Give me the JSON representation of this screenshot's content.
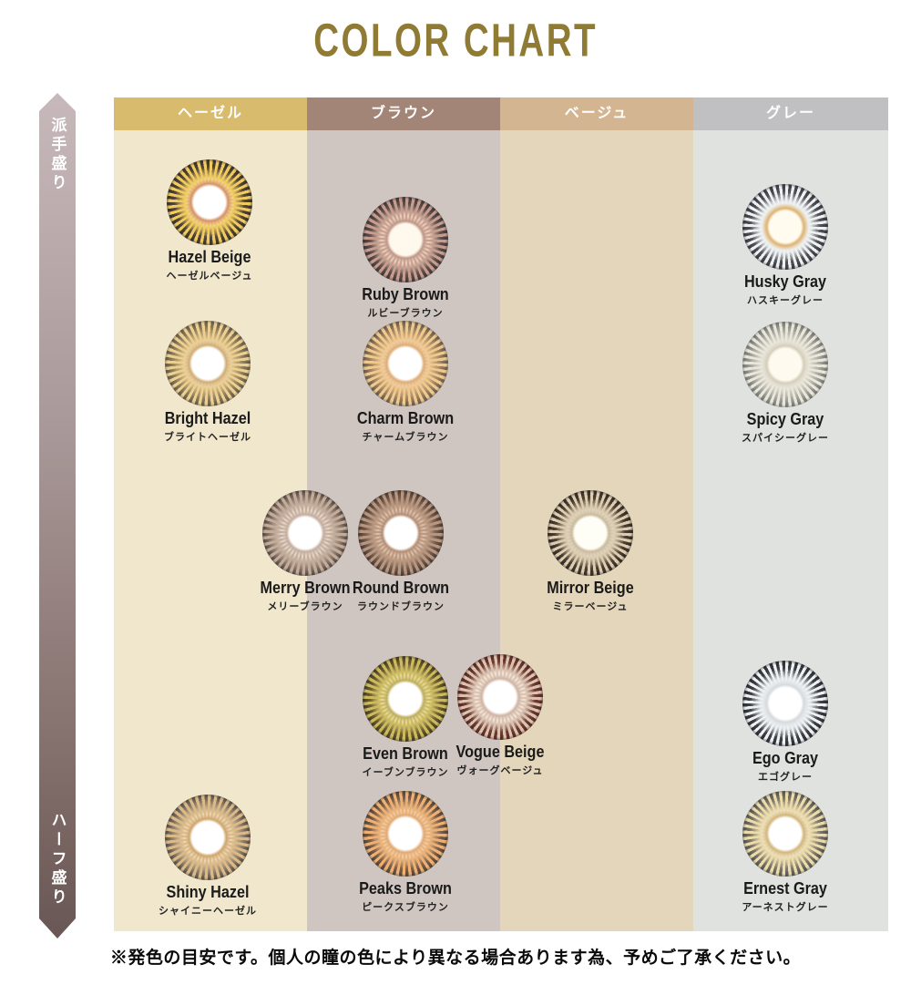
{
  "title": "COLOR CHART",
  "title_color": "#8f7b33",
  "sidebar": {
    "top_label": "派手盛り",
    "bottom_label": "ハーフ盛り",
    "gradient_top": "#c7b8ba",
    "gradient_bottom": "#695755"
  },
  "columns": [
    {
      "label": "ヘーゼル",
      "header_color": "#d9bb6d",
      "body_color": "#f0e7cd"
    },
    {
      "label": "ブラウン",
      "header_color": "#a28577",
      "body_color": "#cfc5c1"
    },
    {
      "label": "ベージュ",
      "header_color": "#d3b691",
      "body_color": "#e4d6ba"
    },
    {
      "label": "グレー",
      "header_color": "#c0c0c2",
      "body_color": "#dfe2de"
    }
  ],
  "lenses": [
    {
      "name": "Hazel Beige",
      "jp": "ヘーゼルベージュ",
      "column": "ヘーゼル",
      "colors": {
        "edge": "#332e28",
        "ring": "#554738",
        "mid": "#ecc765",
        "center": "#ffffff",
        "spike": "#f0cb60",
        "inner": "#d08050"
      }
    },
    {
      "name": "Ruby Brown",
      "jp": "ルビーブラウン",
      "column": "ブラウン",
      "colors": {
        "edge": "#3b3334",
        "ring": "#63514c",
        "mid": "#e3c2ad",
        "center": "#fff8ec",
        "spike": "#c79d90",
        "inner": "#b58878"
      }
    },
    {
      "name": "Husky Gray",
      "jp": "ハスキーグレー",
      "column": "グレー",
      "colors": {
        "edge": "#35363c",
        "ring": "#515257",
        "mid": "#e6e9ea",
        "center": "#fffbef",
        "spike": "#eef1f2",
        "inner": "#d8a75e"
      }
    },
    {
      "name": "Bright Hazel",
      "jp": "ブライトヘーゼル",
      "column": "ヘーゼル",
      "colors": {
        "edge": "#5b5342",
        "ring": "#93805c",
        "mid": "#dfc084",
        "center": "#ffffff",
        "spike": "#ecd092",
        "inner": "#c9a05e"
      }
    },
    {
      "name": "Charm Brown",
      "jp": "チャームブラウン",
      "column": "ブラウン",
      "colors": {
        "edge": "#5d544a",
        "ring": "#a0835f",
        "mid": "#e6bd88",
        "center": "#ffffff",
        "spike": "#f0c98f",
        "inner": "#da9f5e"
      }
    },
    {
      "name": "Spicy Gray",
      "jp": "スパイシーグレー",
      "column": "グレー",
      "colors": {
        "edge": "#6e6e6a",
        "ring": "#a3a39c",
        "mid": "#ddd9cd",
        "center": "#fffaf0",
        "spike": "#e9e6da",
        "inner": "#cdc7b2"
      }
    },
    {
      "name": "Merry Brown",
      "jp": "メリーブラウン",
      "column": "ヘーゼル/ブラウン",
      "colors": {
        "edge": "#4b423d",
        "ring": "#927e70",
        "mid": "#dcc9b8",
        "center": "#ffffff",
        "spike": "#c4ac9b",
        "inner": "#bba18e"
      }
    },
    {
      "name": "Round Brown",
      "jp": "ラウンドブラウン",
      "column": "ブラウン",
      "colors": {
        "edge": "#403630",
        "ring": "#77604f",
        "mid": "#cfae92",
        "center": "#ffffff",
        "spike": "#ba9680",
        "inner": "#a97c5e"
      }
    },
    {
      "name": "Mirror Beige",
      "jp": "ミラーベージュ",
      "column": "ベージュ",
      "colors": {
        "edge": "#302822",
        "ring": "#4e4033",
        "mid": "#d3c4a9",
        "center": "#fffef6",
        "spike": "#dccdb1",
        "inner": "#c2b090"
      }
    },
    {
      "name": "Even Brown",
      "jp": "イーブンブラウン",
      "column": "ブラウン",
      "colors": {
        "edge": "#3d3522",
        "ring": "#716130",
        "mid": "#dfcd7a",
        "center": "#ffffff",
        "spike": "#cbba5e",
        "inner": "#b5a242"
      }
    },
    {
      "name": "Vogue Beige",
      "jp": "ヴォーグベージュ",
      "column": "ブラウン/ベージュ",
      "colors": {
        "edge": "#4e2722",
        "ring": "#713e32",
        "mid": "#ecdccb",
        "center": "#ffffff",
        "spike": "#dcc3b1",
        "inner": "#c8a894"
      }
    },
    {
      "name": "Ego Gray",
      "jp": "エゴグレー",
      "column": "グレー",
      "colors": {
        "edge": "#282a2e",
        "ring": "#3e4146",
        "mid": "#dde1e4",
        "center": "#ffffff",
        "spike": "#edf1f4",
        "inner": "#cfd4d8"
      }
    },
    {
      "name": "Shiny Hazel",
      "jp": "シャイニーヘーゼル",
      "column": "ヘーゼル",
      "colors": {
        "edge": "#4d463e",
        "ring": "#93826c",
        "mid": "#e5c99c",
        "center": "#ffffff",
        "spike": "#dcba88",
        "inner": "#c89754"
      }
    },
    {
      "name": "Peaks Brown",
      "jp": "ピークスブラウン",
      "column": "ブラウン",
      "colors": {
        "edge": "#473e35",
        "ring": "#82614a",
        "mid": "#e8ba86",
        "center": "#ffffff",
        "spike": "#efb173",
        "inner": "#dd9c5c"
      }
    },
    {
      "name": "Ernest Gray",
      "jp": "アーネストグレー",
      "column": "グレー",
      "colors": {
        "edge": "#4d4d4a",
        "ring": "#7e786c",
        "mid": "#e6d6ac",
        "center": "#ffffff",
        "spike": "#ecdcaa",
        "inner": "#cbaa66"
      }
    }
  ],
  "footnote": "※発色の目安です。個人の瞳の色により異なる場合あります為、予めご了承ください。"
}
